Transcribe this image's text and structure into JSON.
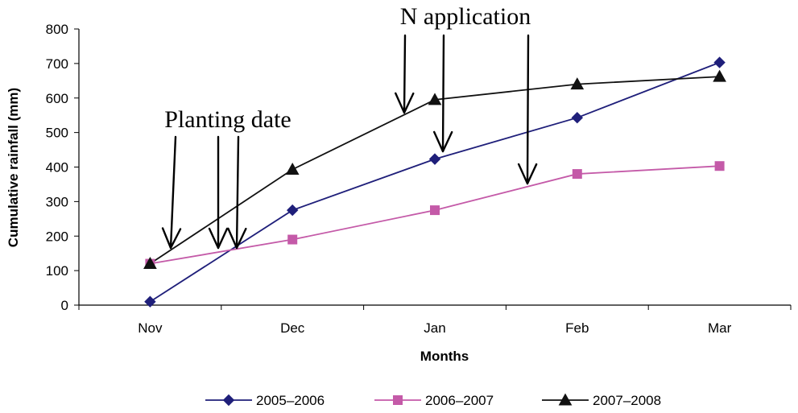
{
  "chart_data": {
    "type": "line",
    "categories": [
      "Nov",
      "Dec",
      "Jan",
      "Feb",
      "Mar"
    ],
    "xlabel": "Months",
    "ylabel": "Cumulative rainfall (mm)",
    "ylim": [
      0,
      800
    ],
    "yticks": [
      0,
      100,
      200,
      300,
      400,
      500,
      600,
      700,
      800
    ],
    "grid": false,
    "legend_position": "bottom",
    "series": [
      {
        "name": "2005–2006",
        "values": [
          10,
          275,
          423,
          543,
          703
        ],
        "color": "#1f1f7a",
        "marker": "diamond"
      },
      {
        "name": "2006–2007",
        "values": [
          120,
          190,
          275,
          380,
          403
        ],
        "color": "#c45aa8",
        "marker": "square"
      },
      {
        "name": "2007–2008",
        "values": [
          120,
          393,
          595,
          640,
          662
        ],
        "color": "#111111",
        "marker": "triangle"
      }
    ],
    "annotations": [
      {
        "text": "Planting date",
        "arrow_targets_month": [
          0.15,
          0.45,
          0.6
        ]
      },
      {
        "text": "N application",
        "arrow_targets_month": [
          1.7,
          2.0,
          2.55
        ]
      }
    ]
  }
}
